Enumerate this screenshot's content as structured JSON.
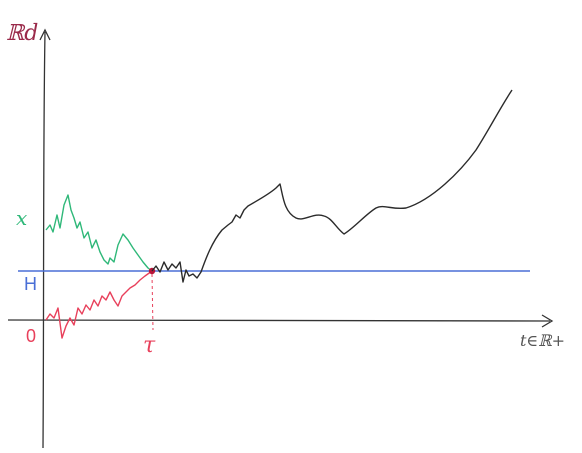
{
  "labels": {
    "y_axis": "ℝd",
    "x_axis": "t∈ℝ+",
    "x0": "x",
    "H": "H",
    "zero": "0",
    "tau": "τ"
  },
  "colors": {
    "axis": "#333333",
    "H_line": "#4a6fd6",
    "green_path": "#2fb879",
    "red_path": "#e8405b",
    "black_path": "#2b2b2b",
    "y_label": "#9a2a4a",
    "x0_label": "#2fb879",
    "H_label": "#4a6fd6",
    "zero_label": "#e8405b",
    "tau_label": "#e8405b",
    "x_label": "#555555"
  }
}
